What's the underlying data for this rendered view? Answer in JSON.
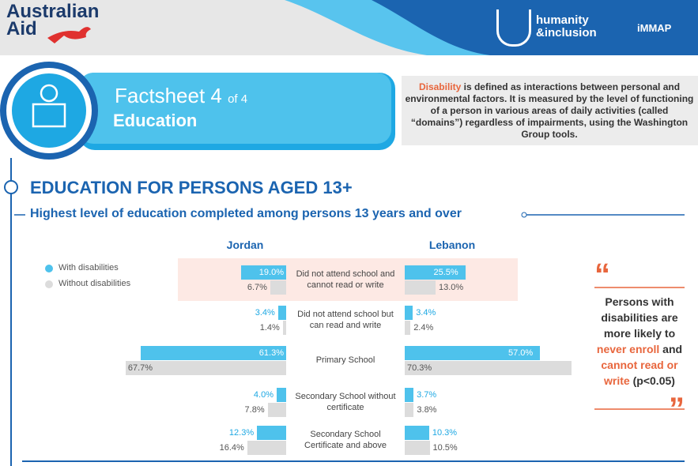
{
  "header": {
    "logo_line1": "Australian",
    "logo_line2": "Aid",
    "partner1_line1": "humanity",
    "partner1_line2": "&inclusion",
    "partner2": "iMMAP"
  },
  "factsheet": {
    "label": "Factsheet 4",
    "of": "of 4",
    "topic": "Education"
  },
  "definition": {
    "term": "Disability",
    "text": " is defined as interactions between personal and environmental factors. It is measured by the level of functioning of a person in various areas of daily activities (called “domains”) regardless of impairments, using the Washington Group tools."
  },
  "section_title": "EDUCATION FOR PERSONS AGED 13+",
  "quote": {
    "parts": [
      "Persons with disabilities are more likely to ",
      "never enroll",
      " and ",
      "cannot read or write",
      " (p<0.05)"
    ]
  },
  "chart_data": {
    "type": "butterfly",
    "title": "Highest level of education completed among persons 13 years and over",
    "panels": [
      "Jordan",
      "Lebanon"
    ],
    "categories": [
      "Did not attend school and cannot read or write",
      "Did not attend school but can read and write",
      "Primary School",
      "Secondary School without certificate",
      "Secondary School Certificate and above"
    ],
    "series": [
      {
        "name": "With disabilities",
        "color": "#4ec2ec",
        "values": [
          [
            19.0,
            3.4,
            61.3,
            4.0,
            12.3
          ],
          [
            25.5,
            3.4,
            57.0,
            3.7,
            10.3
          ]
        ],
        "value_labels": [
          [
            "19.0%",
            "3.4%",
            "61.3%",
            "4.0%",
            "12.3%"
          ],
          [
            "25.5%",
            "3.4%",
            "57.0%",
            "3.7%",
            "10.3%"
          ]
        ]
      },
      {
        "name": "Without disabilities",
        "color": "#dcdcdc",
        "values": [
          [
            6.7,
            1.4,
            67.7,
            7.8,
            16.4
          ],
          [
            13.0,
            2.4,
            70.3,
            3.8,
            10.5
          ]
        ],
        "value_labels": [
          [
            "6.7%",
            "1.4%",
            "67.7%",
            "7.8%",
            "16.4%"
          ],
          [
            "13.0%",
            "2.4%",
            "70.3%",
            "3.8%",
            "10.5%"
          ]
        ]
      }
    ]
  }
}
